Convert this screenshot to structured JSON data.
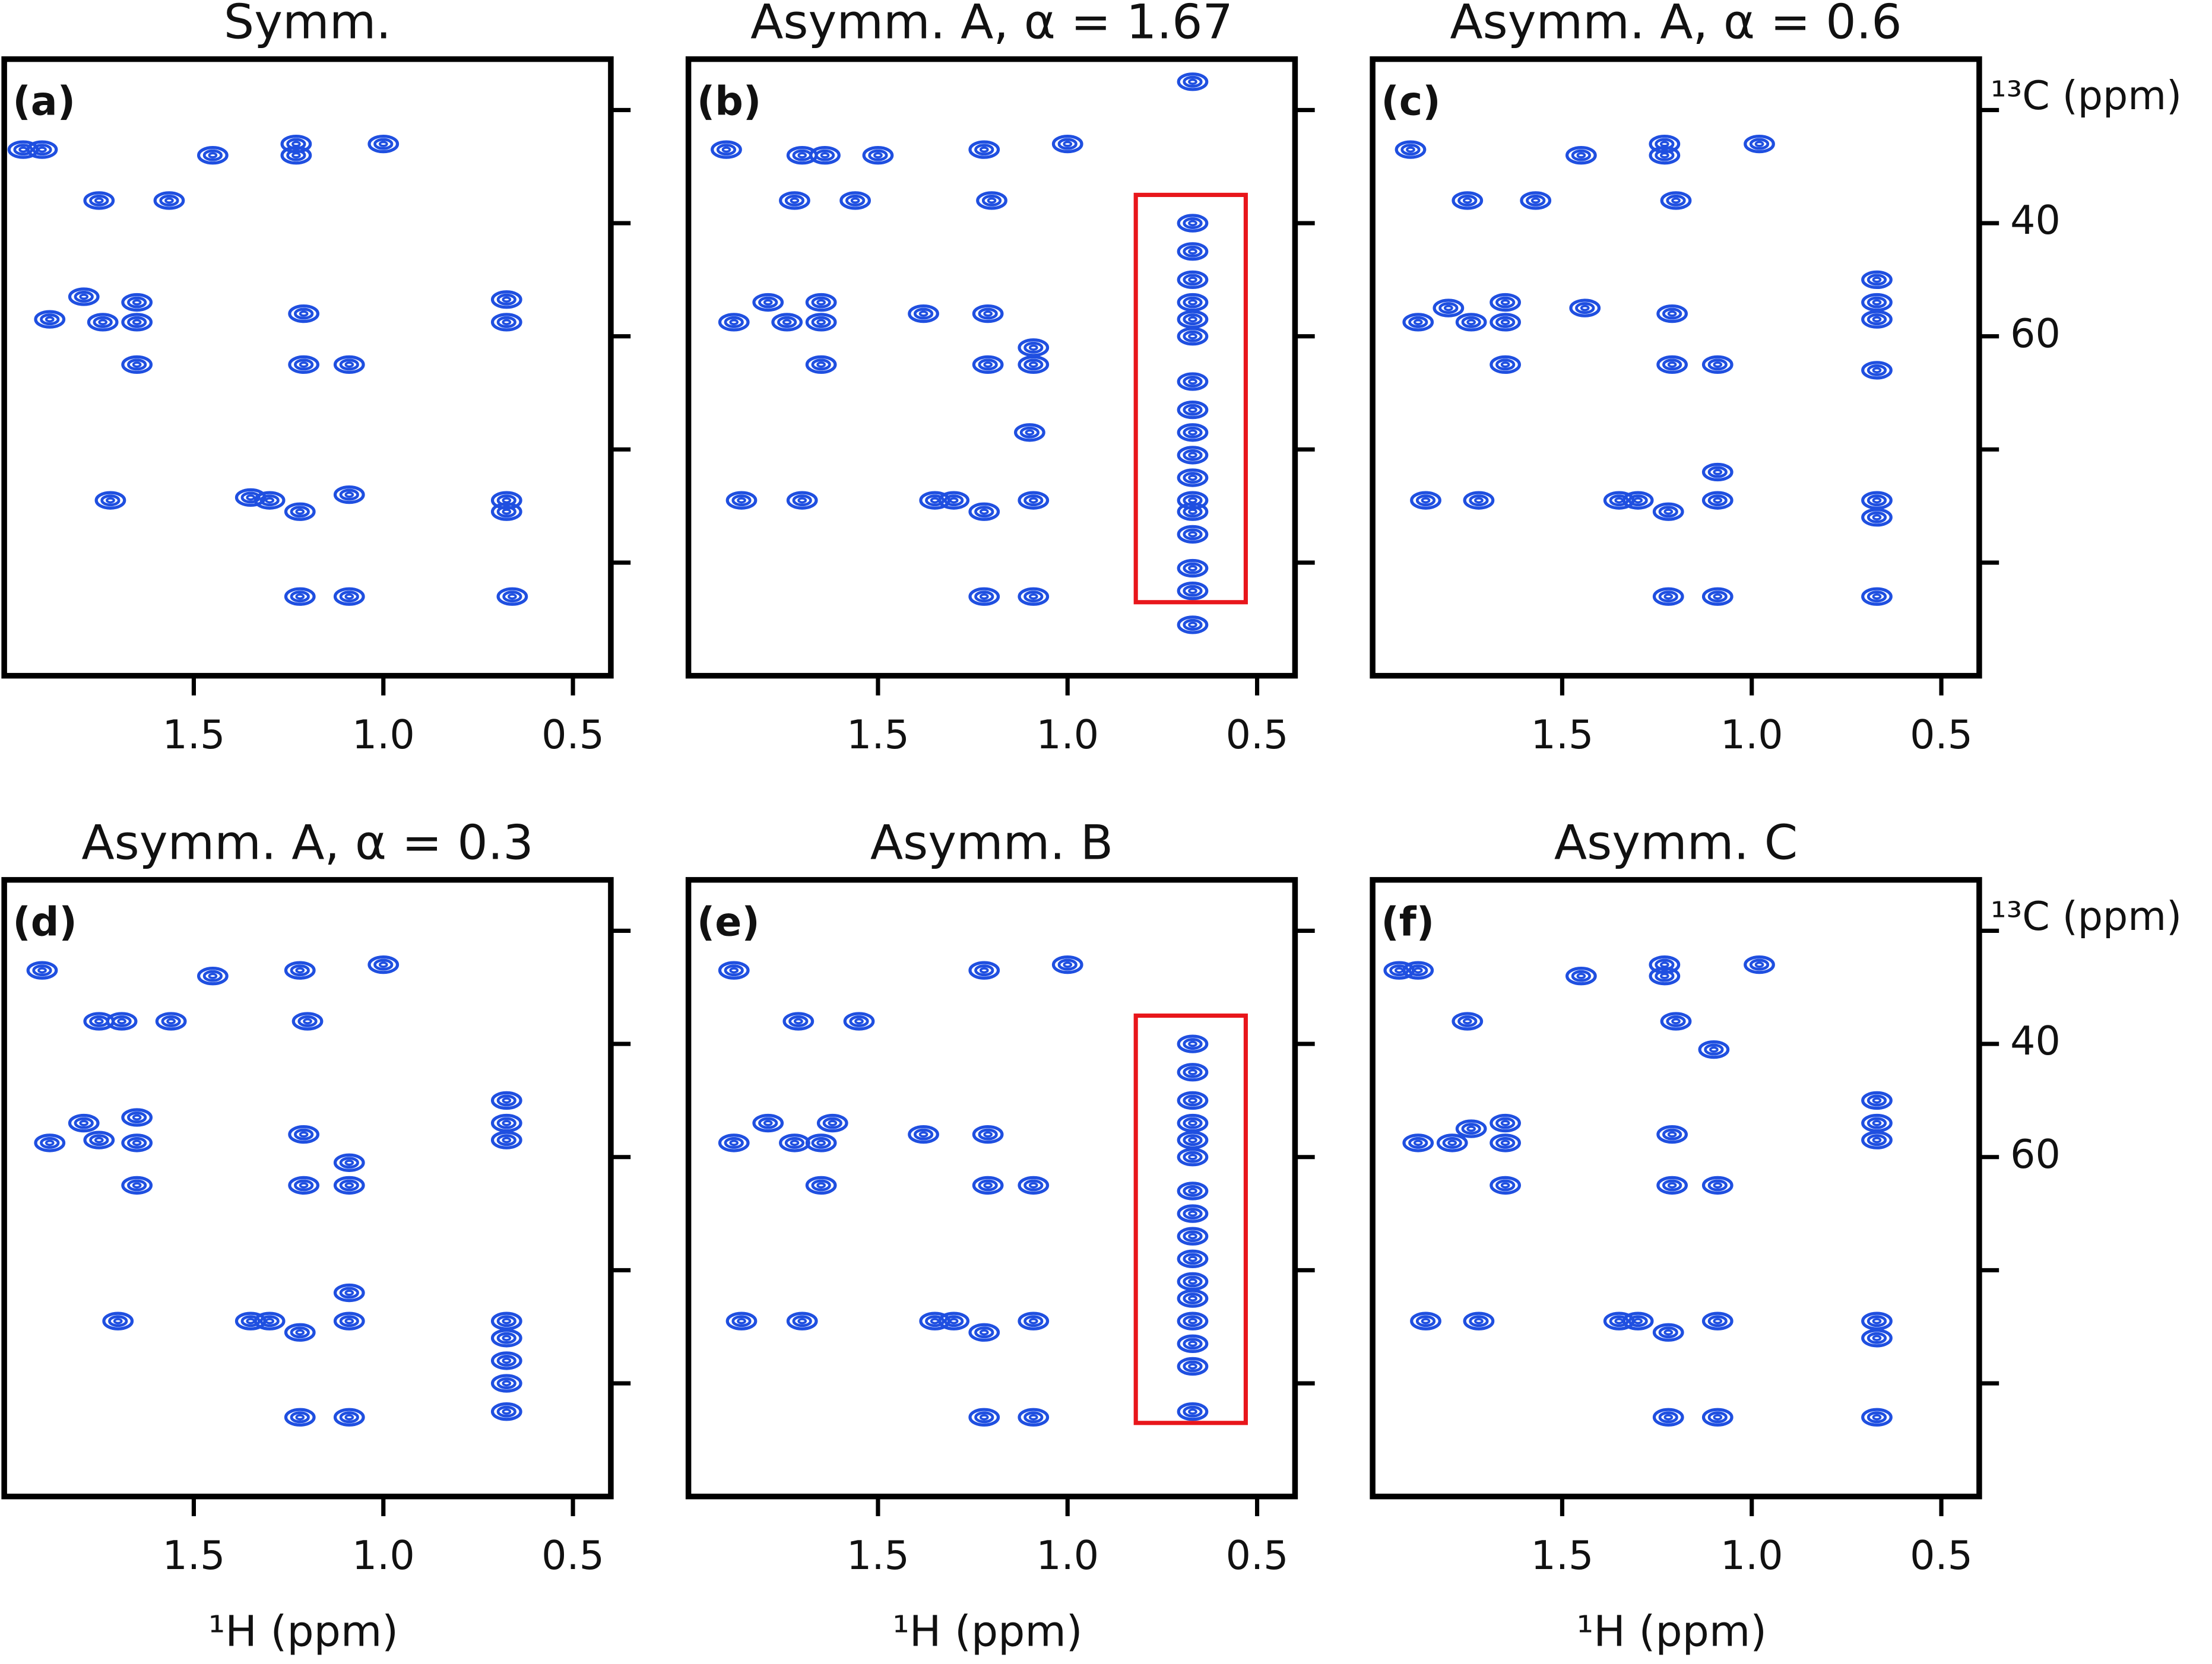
{
  "chart_data": [
    {
      "type": "contour",
      "title": "Symm.",
      "panel": "(a)",
      "color": "#1f4fe0",
      "xlim": [
        2.0,
        0.4
      ],
      "ylim": [
        11,
        120
      ],
      "xticks": [
        1.5,
        {
          "value": 1,
          "label": "1.0"
        },
        0.5
      ],
      "yticks": [
        {
          "value": 20,
          "label": null
        },
        {
          "value": 40,
          "label": null
        },
        {
          "value": 60,
          "label": null
        },
        {
          "value": 80,
          "label": null
        },
        {
          "value": 100,
          "label": null
        }
      ],
      "x": [
        1.95,
        1.9,
        1.75,
        1.565,
        1.45,
        1.23,
        1.23,
        1.0,
        1.88,
        1.79,
        1.74,
        1.65,
        1.65,
        1.65,
        1.21,
        1.21,
        1.09,
        0.675,
        0.675,
        1.72,
        1.35,
        1.3,
        1.22,
        1.09,
        0.675,
        0.675,
        1.22,
        1.09,
        0.66
      ],
      "y": [
        27,
        27,
        36,
        36,
        28,
        26,
        28,
        26,
        57,
        53,
        57.5,
        54,
        57.5,
        65,
        56,
        65,
        65,
        53.5,
        57.5,
        89,
        88.5,
        89,
        91,
        88,
        89,
        91,
        106,
        106,
        106
      ]
    },
    {
      "type": "contour",
      "title": "Asymm. A, α = 1.67",
      "panel": "(b)",
      "color": "#1f4fe0",
      "xlim": [
        2.0,
        0.4
      ],
      "ylim": [
        11,
        120
      ],
      "xticks": [
        1.5,
        {
          "value": 1,
          "label": "1.0"
        },
        0.5
      ],
      "yticks": [
        {
          "value": 20,
          "label": null
        },
        {
          "value": 40,
          "label": null
        },
        {
          "value": 60,
          "label": null
        },
        {
          "value": 80,
          "label": null
        },
        {
          "value": 100,
          "label": null
        }
      ],
      "x": [
        1.9,
        1.7,
        1.64,
        1.5,
        1.22,
        1.0,
        0.67,
        1.72,
        1.56,
        1.2,
        1.88,
        1.79,
        1.74,
        1.65,
        1.65,
        1.65,
        1.38,
        1.21,
        1.21,
        1.09,
        1.09,
        1.1,
        1.86,
        1.7,
        1.35,
        1.3,
        1.22,
        1.09,
        1.22,
        1.09,
        0.67,
        0.67,
        0.67,
        0.67,
        0.67,
        0.67,
        0.67,
        0.67,
        0.67,
        0.67,
        0.67,
        0.67,
        0.67,
        0.67,
        0.67,
        0.67,
        0.67
      ],
      "y": [
        27,
        28,
        28,
        28,
        27,
        26,
        15,
        36,
        36,
        36,
        57.5,
        54,
        57.5,
        54,
        57.5,
        65,
        56,
        56,
        65,
        65,
        62,
        77,
        89,
        89,
        89,
        89,
        91,
        89,
        106,
        106,
        40,
        45,
        50,
        54,
        57,
        60,
        68,
        73,
        77,
        81,
        85,
        89,
        91,
        95,
        101,
        105,
        111
      ],
      "highlight": {
        "xlim": [
          0.82,
          0.53
        ],
        "ylim": [
          35,
          107
        ],
        "color": "#e8161b"
      }
    },
    {
      "type": "contour",
      "title": "Asymm. A, α = 0.6",
      "panel": "(c)",
      "color": "#1f4fe0",
      "ylabel": "¹³C (ppm)",
      "xlim": [
        2.0,
        0.4
      ],
      "ylim": [
        11,
        120
      ],
      "xticks": [
        1.5,
        {
          "value": 1,
          "label": "1.0"
        },
        0.5
      ],
      "yticks": [
        {
          "value": 20,
          "label": null
        },
        40,
        60,
        {
          "value": 80,
          "label": null
        },
        {
          "value": 100,
          "label": null
        }
      ],
      "x": [
        1.9,
        1.45,
        1.23,
        1.23,
        0.98,
        1.75,
        1.57,
        1.2,
        1.88,
        1.8,
        1.74,
        1.65,
        1.65,
        1.65,
        1.44,
        1.21,
        1.21,
        1.09,
        0.67,
        0.67,
        0.67,
        0.67,
        1.86,
        1.72,
        1.35,
        1.3,
        1.22,
        1.09,
        1.09,
        0.67,
        0.67,
        1.22,
        1.09,
        0.67
      ],
      "y": [
        27,
        28,
        26,
        28,
        26,
        36,
        36,
        36,
        57.5,
        55,
        57.5,
        54,
        57.5,
        65,
        55,
        56,
        65,
        65,
        50,
        54,
        57,
        66,
        89,
        89,
        89,
        89,
        91,
        89,
        84,
        89,
        92,
        106,
        106,
        106
      ]
    },
    {
      "type": "contour",
      "title": "Asymm. A, α = 0.3",
      "panel": "(d)",
      "color": "#1f4fe0",
      "xlabel": "¹H (ppm)",
      "xlim": [
        2.0,
        0.4
      ],
      "ylim": [
        11,
        120
      ],
      "xticks": [
        1.5,
        {
          "value": 1,
          "label": "1.0"
        },
        0.5
      ],
      "yticks": [
        {
          "value": 20,
          "label": null
        },
        {
          "value": 40,
          "label": null
        },
        {
          "value": 60,
          "label": null
        },
        {
          "value": 80,
          "label": null
        },
        {
          "value": 100,
          "label": null
        }
      ],
      "x": [
        1.9,
        1.45,
        1.22,
        1.0,
        1.75,
        1.69,
        1.56,
        1.2,
        1.88,
        1.79,
        1.75,
        1.65,
        1.65,
        1.65,
        1.21,
        1.21,
        1.09,
        1.09,
        0.675,
        0.675,
        0.675,
        1.7,
        1.35,
        1.3,
        1.22,
        1.09,
        1.09,
        0.675,
        0.675,
        0.675,
        0.675,
        0.675,
        1.22,
        1.09
      ],
      "y": [
        27,
        28,
        27,
        26,
        36,
        36,
        36,
        36,
        57.5,
        54,
        57,
        53,
        57.5,
        65,
        56,
        65,
        65,
        61,
        50,
        54,
        57,
        89,
        89,
        89,
        91,
        89,
        84,
        89,
        92,
        96,
        100,
        105,
        106,
        106
      ]
    },
    {
      "type": "contour",
      "title": "Asymm. B",
      "panel": "(e)",
      "color": "#1f4fe0",
      "xlabel": "¹H (ppm)",
      "xlim": [
        2.0,
        0.4
      ],
      "ylim": [
        11,
        120
      ],
      "xticks": [
        1.5,
        {
          "value": 1,
          "label": "1.0"
        },
        0.5
      ],
      "yticks": [
        {
          "value": 20,
          "label": null
        },
        {
          "value": 40,
          "label": null
        },
        {
          "value": 60,
          "label": null
        },
        {
          "value": 80,
          "label": null
        },
        {
          "value": 100,
          "label": null
        }
      ],
      "x": [
        1.88,
        1.22,
        1.0,
        1.71,
        1.55,
        1.88,
        1.79,
        1.72,
        1.62,
        1.65,
        1.65,
        1.38,
        1.21,
        1.21,
        1.09,
        1.86,
        1.7,
        1.35,
        1.3,
        1.22,
        1.09,
        1.22,
        1.09,
        0.67,
        0.67,
        0.67,
        0.67,
        0.67,
        0.67,
        0.67,
        0.67,
        0.67,
        0.67,
        0.67,
        0.67,
        0.67,
        0.67,
        0.67,
        0.67
      ],
      "y": [
        27,
        27,
        26,
        36,
        36,
        57.5,
        54,
        57.5,
        54,
        57.5,
        65,
        56,
        56,
        65,
        65,
        89,
        89,
        89,
        89,
        91,
        89,
        106,
        106,
        40,
        45,
        50,
        54,
        57,
        60,
        66,
        70,
        74,
        78,
        82,
        85,
        89,
        93,
        97,
        105
      ],
      "highlight": {
        "xlim": [
          0.82,
          0.53
        ],
        "ylim": [
          35,
          107
        ],
        "color": "#e8161b"
      }
    },
    {
      "type": "contour",
      "title": "Asymm. C",
      "panel": "(f)",
      "color": "#1f4fe0",
      "xlabel": "¹H (ppm)",
      "ylabel": "¹³C (ppm)",
      "xlim": [
        2.0,
        0.4
      ],
      "ylim": [
        11,
        120
      ],
      "xticks": [
        1.5,
        {
          "value": 1,
          "label": "1.0"
        },
        0.5
      ],
      "yticks": [
        {
          "value": 20,
          "label": null
        },
        40,
        60,
        {
          "value": 80,
          "label": null
        },
        {
          "value": 100,
          "label": null
        }
      ],
      "x": [
        1.93,
        1.88,
        1.45,
        1.23,
        1.23,
        0.98,
        1.75,
        1.2,
        1.1,
        1.88,
        1.79,
        1.74,
        1.65,
        1.65,
        1.65,
        1.21,
        1.21,
        1.09,
        0.67,
        0.67,
        0.67,
        1.86,
        1.72,
        1.35,
        1.3,
        1.22,
        1.09,
        0.67,
        0.67,
        1.22,
        1.09,
        0.67
      ],
      "y": [
        27,
        27,
        28,
        26,
        28,
        26,
        36,
        36,
        41,
        57.5,
        57.5,
        55,
        54,
        57.5,
        65,
        56,
        65,
        65,
        50,
        54,
        57,
        89,
        89,
        89,
        89,
        91,
        89,
        89,
        92,
        106,
        106,
        106
      ]
    }
  ]
}
